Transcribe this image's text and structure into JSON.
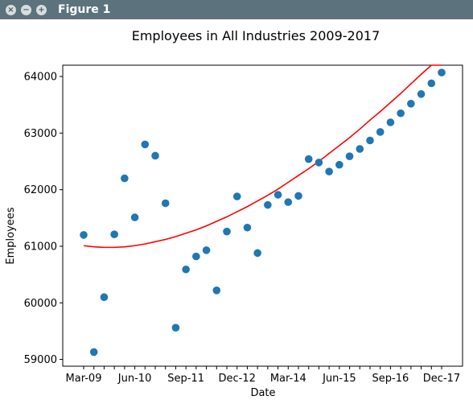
{
  "window": {
    "title": "Figure 1",
    "buttons": [
      {
        "name": "close",
        "glyph": "×"
      },
      {
        "name": "minimize",
        "glyph": "−"
      },
      {
        "name": "maximize",
        "glyph": "+"
      }
    ],
    "titlebar_color": "#5c727c"
  },
  "chart_data": {
    "type": "scatter",
    "title": "Employees in All Industries 2009-2017",
    "xlabel": "Date",
    "ylabel": "Employees",
    "xtick_labels": [
      "Mar-09",
      "Jun-10",
      "Sep-11",
      "Dec-12",
      "Mar-14",
      "Jun-15",
      "Sep-16",
      "Dec-17"
    ],
    "yticks": [
      59000,
      60000,
      61000,
      62000,
      63000,
      64000
    ],
    "ylim": [
      58880,
      64200
    ],
    "grid": false,
    "colors": {
      "points": "#1f77b4",
      "trend": "#ff0000"
    },
    "series": [
      {
        "kind": "points",
        "x": [
          "Mar-09",
          "Jun-09",
          "Sep-09",
          "Dec-09",
          "Mar-10",
          "Jun-10",
          "Sep-10",
          "Dec-10",
          "Mar-11",
          "Jun-11",
          "Sep-11",
          "Dec-11",
          "Mar-12",
          "Jun-12",
          "Sep-12",
          "Dec-12",
          "Mar-13",
          "Jun-13",
          "Sep-13",
          "Dec-13",
          "Mar-14",
          "Jun-14",
          "Sep-14",
          "Dec-14",
          "Mar-15",
          "Jun-15",
          "Sep-15",
          "Dec-15",
          "Mar-16",
          "Jun-16",
          "Sep-16",
          "Dec-16",
          "Mar-17",
          "Jun-17",
          "Sep-17",
          "Dec-17"
        ],
        "values": [
          61200,
          59130,
          60100,
          61210,
          62200,
          61510,
          62800,
          62600,
          61760,
          59560,
          60590,
          60820,
          60930,
          60220,
          61260,
          61880,
          61330,
          60880,
          61730,
          61910,
          61780,
          61890,
          62540,
          62480,
          62320,
          62440,
          62590,
          62720,
          62870,
          63020,
          63190,
          63350,
          63520,
          63690,
          63880,
          64070
        ]
      },
      {
        "kind": "trend-line",
        "fit": "quadratic",
        "x": [
          "Mar-09",
          "Jun-09",
          "Sep-09",
          "Dec-09",
          "Mar-10",
          "Jun-10",
          "Sep-10",
          "Dec-10",
          "Mar-11",
          "Jun-11",
          "Sep-11",
          "Dec-11",
          "Mar-12",
          "Jun-12",
          "Sep-12",
          "Dec-12",
          "Mar-13",
          "Jun-13",
          "Sep-13",
          "Dec-13",
          "Mar-14",
          "Jun-14",
          "Sep-14",
          "Dec-14",
          "Mar-15",
          "Jun-15",
          "Sep-15",
          "Dec-15",
          "Mar-16",
          "Jun-16",
          "Sep-16",
          "Dec-16",
          "Mar-17",
          "Jun-17",
          "Sep-17",
          "Dec-17"
        ],
        "values": [
          61010,
          60990,
          60980,
          60980,
          60990,
          61010,
          61040,
          61080,
          61120,
          61170,
          61230,
          61290,
          61360,
          61440,
          61520,
          61610,
          61700,
          61800,
          61900,
          62010,
          62130,
          62250,
          62370,
          62500,
          62640,
          62780,
          62920,
          63070,
          63230,
          63380,
          63540,
          63700,
          63870,
          64040,
          64220,
          64400
        ]
      }
    ]
  }
}
